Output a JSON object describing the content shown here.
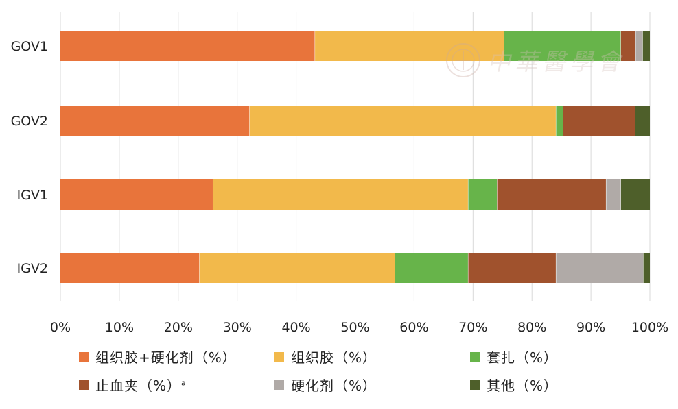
{
  "chart_data": {
    "type": "bar",
    "orientation": "horizontal",
    "stacked": true,
    "percent": true,
    "categories": [
      "GOV1",
      "GOV2",
      "IGV1",
      "IGV2"
    ],
    "series": [
      {
        "name": "组织胶+硬化剂（%）",
        "color": "#E8743B",
        "values": [
          43.2,
          32.1,
          25.9,
          23.6
        ]
      },
      {
        "name": "组织胶（%）",
        "color": "#F2B94B",
        "values": [
          32.1,
          52.0,
          43.3,
          33.2
        ]
      },
      {
        "name": "套扎（%）",
        "color": "#67B44A",
        "values": [
          19.8,
          1.2,
          4.9,
          12.4
        ]
      },
      {
        "name": "止血夹（%）",
        "name_superscript": "a",
        "color": "#A0522D",
        "values": [
          2.5,
          12.2,
          18.5,
          14.9
        ]
      },
      {
        "name": "硬化剂（%）",
        "color": "#B0AAA7",
        "values": [
          1.2,
          0.0,
          2.5,
          14.8
        ]
      },
      {
        "name": "其他（%）",
        "color": "#4E5F2A",
        "values": [
          1.2,
          2.5,
          4.9,
          1.1
        ]
      }
    ],
    "xlim": [
      0,
      100
    ],
    "x_ticks": [
      "0%",
      "10%",
      "20%",
      "30%",
      "40%",
      "50%",
      "60%",
      "70%",
      "80%",
      "90%",
      "100%"
    ],
    "grid": true,
    "legend_position": "bottom"
  },
  "watermark": "中華醫學會"
}
